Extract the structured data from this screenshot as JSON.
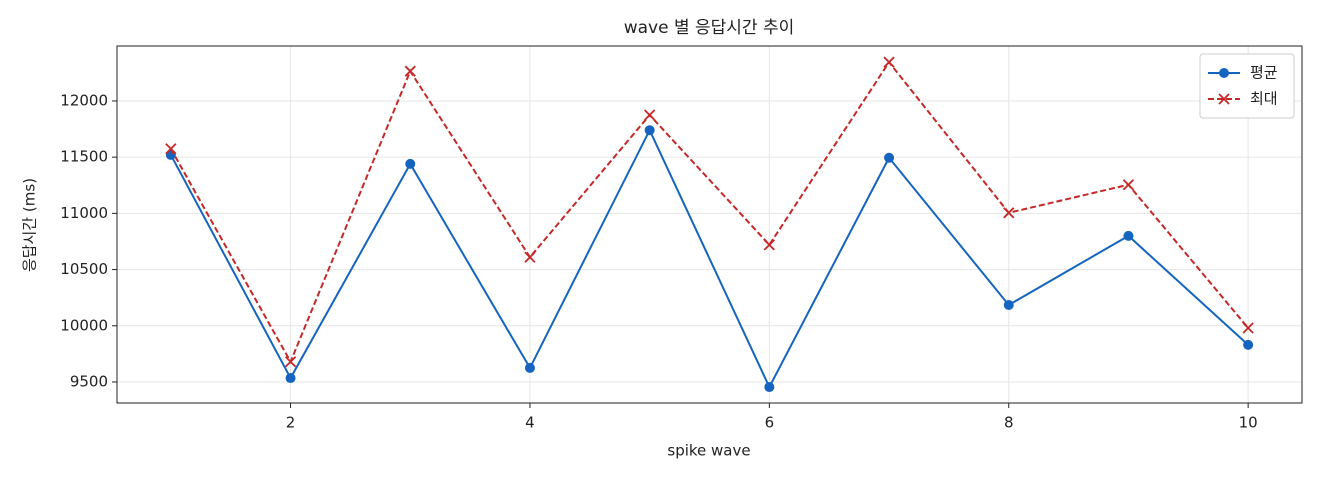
{
  "chart_data": {
    "type": "line",
    "title": "wave 별 응답시간 추이",
    "x_label": "spike wave",
    "y_label": "응답시간 (ms)",
    "x": [
      1,
      2,
      3,
      4,
      5,
      6,
      7,
      8,
      9,
      10
    ],
    "series": [
      {
        "name": "평균",
        "color": "#1565c0",
        "marker": "o",
        "dash": false,
        "values": [
          11520,
          9535,
          11440,
          9625,
          11740,
          9455,
          11495,
          10185,
          10800,
          9830
        ]
      },
      {
        "name": "최대",
        "color": "#c62828",
        "marker": "x",
        "dash": true,
        "values": [
          11575,
          9680,
          12265,
          10610,
          11875,
          10720,
          12345,
          11005,
          11255,
          9980
        ]
      }
    ],
    "xlim": [
      0.55,
      10.45
    ],
    "xticks": [
      2,
      4,
      6,
      8,
      10
    ],
    "ylim": [
      9313,
      12489
    ],
    "yticks": [
      9500,
      10000,
      10500,
      11000,
      11500,
      12000
    ],
    "grid": true,
    "legend": "upper right"
  }
}
